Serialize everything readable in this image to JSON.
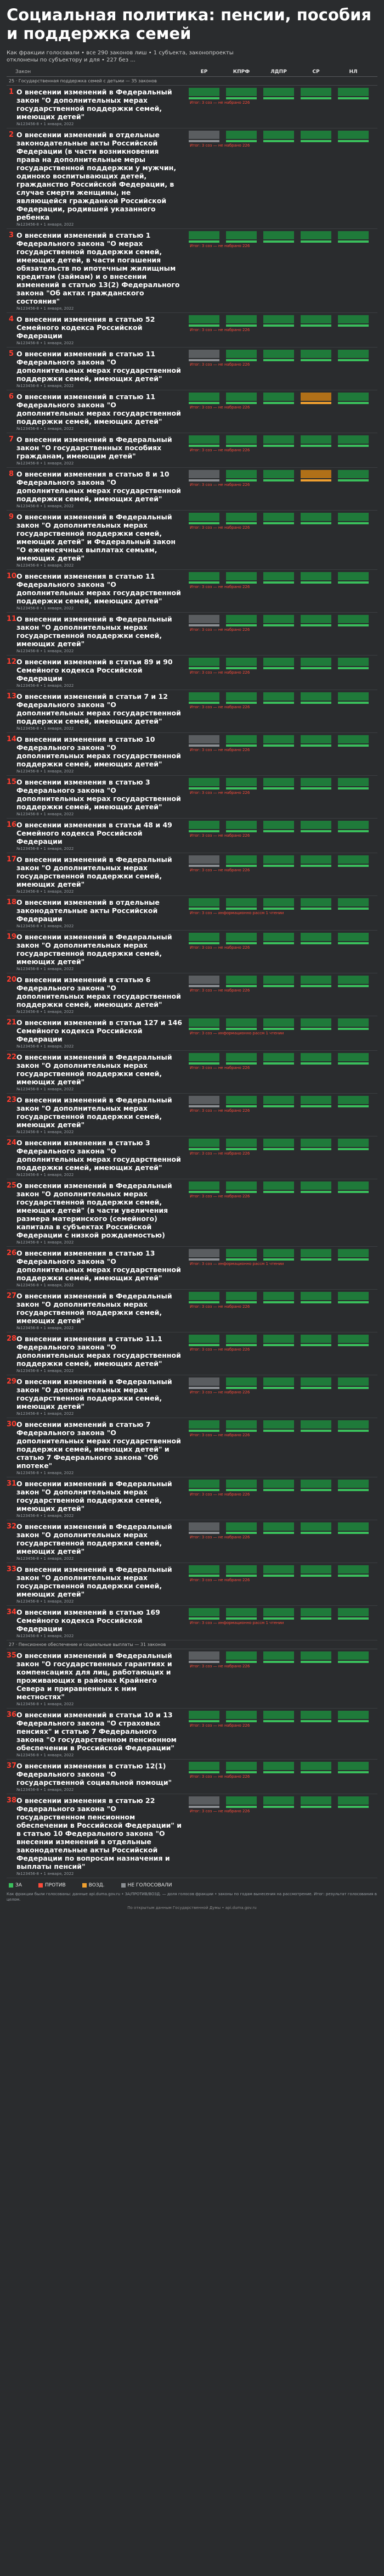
{
  "title": "Социальная политика: пенсии, пособия и поддержка семей",
  "subtitle": "Как фракции голосовали • все 290 законов лиш • 1 субъекта, законопроекты отклонены по субъектору и для • 227 без ...",
  "header": {
    "law_col": "Закон",
    "parties": [
      "ЕР",
      "КПРФ",
      "ЛДПР",
      "СР",
      "НЛ"
    ]
  },
  "section1": "25 · Государственная поддержка семей с детьми — 35 законов",
  "section2": "27 · Пенсионное обеспечение и социальные выплаты — 31 законов",
  "rows": [
    {
      "n": "1",
      "t": "О внесении изменений в Федеральный закон \"О дополнительных мерах государственной поддержки семей, имеющих детей\"",
      "m": "№123456-8 • 1 января, 2022",
      "res": "Итог: 3 соз — не набрано 226"
    },
    {
      "n": "2",
      "t": "О внесении изменений в отдельные законодательные акты Российской Федерации (в части возникновения права на дополнительные меры государственной поддержки у мужчин, одиноко воспитывающих детей, гражданство Российской Федерации, в случае смерти женщины, не являющейся гражданкой Российской Федерации, родившей указанного ребенка",
      "m": "№123456-8 • 1 января, 2022",
      "res": "Итог: 3 соз — не набрано 226"
    },
    {
      "n": "3",
      "t": "О внесении изменений в статью 1 Федерального закона \"О мерах государственной поддержки семей, имеющих детей, в части погашения обязательств по ипотечным жилищным кредитам (займам) и о внесении изменений в статью 13(2) Федерального закона \"Об актах гражданского состояния\"",
      "m": "№123456-8 • 1 января, 2022",
      "res": "Итог: 3 соз — не набрано 226"
    },
    {
      "n": "4",
      "t": "О внесении изменения в статью 52 Семейного кодекса Российской Федерации",
      "m": "№123456-8 • 1 января, 2022",
      "res": "Итог: 3 соз — не набрано 226"
    },
    {
      "n": "5",
      "t": "О внесении изменений в статью 11 Федерального закона \"О дополнительных мерах государственной поддержки семей, имеющих детей\"",
      "m": "№123456-8 • 1 января, 2022",
      "res": "Итог: 3 соз — не набрано 226"
    },
    {
      "n": "6",
      "t": "О внесении изменений в статью 11 Федерального закона \"О дополнительных мерах государственной поддержки семей, имеющих детей\"",
      "m": "№123456-8 • 1 января, 2022",
      "res": "Итог: 3 соз — не набрано 226"
    },
    {
      "n": "7",
      "t": "О внесении изменений в Федеральный закон \"О государственных пособиях гражданам, имеющим детей\"",
      "m": "№123456-8 • 1 января, 2022",
      "res": "Итог: 3 соз — не набрано 226"
    },
    {
      "n": "8",
      "t": "О внесении изменения в статью 8 и 10 Федерального закона \"О дополнительных мерах государственной поддержки семей, имеющих детей\"",
      "m": "№123456-8 • 1 января, 2022",
      "res": "Итог: 3 соз — не набрано 226"
    },
    {
      "n": "9",
      "t": "О внесении изменений в Федеральный закон \"О дополнительных мерах государственной поддержки семей, имеющих детей\" и Федеральный закон \"О ежемесячных выплатах семьям, имеющих детей\"",
      "m": "№123456-8 • 1 января, 2022",
      "res": "Итог: 3 соз — не набрано 226"
    },
    {
      "n": "10",
      "t": "О внесении изменения в статью 11 Федерального закона \"О дополнительных мерах государственной поддержки семей, имеющих детей\"",
      "m": "№123456-8 • 1 января, 2022",
      "res": "Итог: 3 соз — не набрано 226"
    },
    {
      "n": "11",
      "t": "О внесении изменений в Федеральный закон \"О дополнительных мерах государственной поддержки семей, имеющих детей\"",
      "m": "№123456-8 • 1 января, 2022",
      "res": "Итог: 3 соз — не набрано 226"
    },
    {
      "n": "12",
      "t": "О внесении изменений в статьи 89 и 90 Семейного кодекса Российской Федерации",
      "m": "№123456-8 • 1 января, 2022",
      "res": "Итог: 3 соз — не набрано 226"
    },
    {
      "n": "13",
      "t": "О внесении изменений в статьи 7 и 12 Федерального закона \"О дополнительных мерах государственной поддержки семей, имеющих детей\"",
      "m": "№123456-8 • 1 января, 2022",
      "res": "Итог: 3 соз — не набрано 226"
    },
    {
      "n": "14",
      "t": "О внесении изменения в статью 10 Федерального закона \"О дополнительных мерах государственной поддержки семей, имеющих детей\"",
      "m": "№123456-8 • 1 января, 2022",
      "res": "Итог: 3 соз — не набрано 226"
    },
    {
      "n": "15",
      "t": "О внесении изменения в статью 3 Федерального закона \"О дополнительных мерах государственной поддержки семей, имеющих детей\"",
      "m": "№123456-8 • 1 января, 2022",
      "res": "Итог: 3 соз — не набрано 226"
    },
    {
      "n": "16",
      "t": "О внесении изменения в статьи 48 и 49 Семейного кодекса Российской Федерации",
      "m": "№123456-8 • 1 января, 2022",
      "res": "Итог: 3 соз — не набрано 226"
    },
    {
      "n": "17",
      "t": "О внесении изменений в Федеральный закон \"О дополнительных мерах государственной поддержки семей, имеющих детей\"",
      "m": "№123456-8 • 1 января, 2022",
      "res": "Итог: 3 соз — не набрано 226"
    },
    {
      "n": "18",
      "t": "О внесении изменений в отдельные законодательные акты Российской Федерации",
      "m": "№123456-8 • 1 января, 2022",
      "res": "Итог: 3 соз — информационно рассм 1 чтении"
    },
    {
      "n": "19",
      "t": "О внесении изменений в Федеральный закон \"О дополнительных мерах государственной поддержки семей, имеющих детей\"",
      "m": "№123456-8 • 1 января, 2022",
      "res": "Итог: 3 соз — не набрано 226"
    },
    {
      "n": "20",
      "t": "О внесении изменений в статью 6 Федерального закона \"О дополнительных мерах государственной поддержки семей, имеющих детей\"",
      "m": "№123456-8 • 1 января, 2022",
      "res": "Итог: 3 соз — не набрано 226"
    },
    {
      "n": "21",
      "t": "О внесении изменений в статьи 127 и 146 Семейного кодекса Российской Федерации",
      "m": "№123456-8 • 1 января, 2022",
      "res": "Итог: 3 соз — информационно рассм 1 чтении"
    },
    {
      "n": "22",
      "t": "О внесении изменений в Федеральный закон \"О дополнительных мерах государственной поддержки семей, имеющих детей\"",
      "m": "№123456-8 • 1 января, 2022",
      "res": "Итог: 3 соз — не набрано 226"
    },
    {
      "n": "23",
      "t": "О внесении изменений в Федеральный закон \"О дополнительных мерах государственной поддержки семей, имеющих детей\"",
      "m": "№123456-8 • 1 января, 2022",
      "res": "Итог: 3 соз — не набрано 226"
    },
    {
      "n": "24",
      "t": "О внесении изменения в статью 3 Федерального закона \"О дополнительных мерах государственной поддержки семей, имеющих детей\"",
      "m": "№123456-8 • 1 января, 2022",
      "res": "Итог: 3 соз — не набрано 226"
    },
    {
      "n": "25",
      "t": "О внесении изменений в Федеральный закон \"О дополнительных мерах государственной поддержки семей, имеющих детей\" (в части увеличения размера материнского (семейного) капитала в субъектах Российской Федерации с низкой рождаемостью)",
      "m": "№123456-8 • 1 января, 2022",
      "res": "Итог: 3 соз — не набрано 226"
    },
    {
      "n": "26",
      "t": "О внесении изменения в статью 13 Федерального закона \"О дополнительных мерах государственной поддержки семей, имеющих детей\"",
      "m": "№123456-8 • 1 января, 2022",
      "res": "Итог: 3 соз — информационно рассм 1 чтении"
    },
    {
      "n": "27",
      "t": "О внесении изменений в Федеральный закон \"О дополнительных мерах государственной поддержки семей, имеющих детей\"",
      "m": "№123456-8 • 1 января, 2022",
      "res": "Итог: 3 соз — не набрано 226"
    },
    {
      "n": "28",
      "t": "О внесении изменения в статью 11.1 Федерального закона \"О дополнительных мерах государственной поддержки семей, имеющих детей\"",
      "m": "№123456-8 • 1 января, 2022",
      "res": "Итог: 3 соз — не набрано 226"
    },
    {
      "n": "29",
      "t": "О внесении изменений в Федеральный закон \"О дополнительных мерах государственной поддержки семей, имеющих детей\"",
      "m": "№123456-8 • 1 января, 2022",
      "res": "Итог: 3 соз — не набрано 226"
    },
    {
      "n": "30",
      "t": "О внесении изменений в статью 7 Федерального закона \"О дополнительных мерах государственной поддержки семей, имеющих детей\" и статью 7 Федерального закона \"Об ипотеке\"",
      "m": "№123456-8 • 1 января, 2022",
      "res": "Итог: 3 соз — не набрано 226"
    },
    {
      "n": "31",
      "t": "О внесении изменений в Федеральный закон \"О дополнительных мерах государственной поддержки семей, имеющих детей\"",
      "m": "№123456-8 • 1 января, 2022",
      "res": "Итог: 3 соз — не набрано 226"
    },
    {
      "n": "32",
      "t": "О внесении изменений в Федеральный закон \"О дополнительных мерах государственной поддержки семей, имеющих детей\"",
      "m": "№123456-8 • 1 января, 2022",
      "res": "Итог: 3 соз — не набрано 226"
    },
    {
      "n": "33",
      "t": "О внесении изменений в Федеральный закон \"О дополнительных мерах государственной поддержки семей, имеющих детей\"",
      "m": "№123456-8 • 1 января, 2022",
      "res": "Итог: 3 соз — не набрано 226"
    },
    {
      "n": "34",
      "t": "О внесении изменений в статью 169 Семейного кодекса Российской Федерации",
      "m": "№123456-8 • 1 января, 2022",
      "res": "Итог: 3 соз — информационно рассм 1 чтении"
    },
    {
      "n": "35",
      "t": "О внесении изменений в Федеральный закон \"О государственных гарантиях и компенсациях для лиц, работающих и проживающих в районах Крайнего Севера и приравненных к ним местностях\"",
      "m": "№123456-8 • 1 января, 2022",
      "res": "Итог: 3 соз — не набрано 226"
    },
    {
      "n": "36",
      "t": "О внесении изменений в статьи 10 и 13 Федерального закона \"О страховых пенсиях\" и статью 7 Федерального закона \"О государственном пенсионном обеспечении в Российской Федерации\"",
      "m": "№123456-8 • 1 января, 2022",
      "res": "Итог: 3 соз — не набрано 226"
    },
    {
      "n": "37",
      "t": "О внесении изменения в статью 12(1) Федерального закона \"О государственной социальной помощи\"",
      "m": "№123456-8 • 1 января, 2022",
      "res": "Итог: 3 соз — не набрано 226"
    },
    {
      "n": "38",
      "t": "О внесении изменения в статью 22 Федерального закона \"О государственном пенсионном обеспечении в Российской Федерации\" и в статью 10 Федерального закона \"О внесении изменений в отдельные законодательные акты Российской Федерации по вопросам назначения и выплаты пенсий\"",
      "m": "№123456-8 • 1 января, 2022",
      "res": "Итог: 3 соз — не набрано 226"
    }
  ],
  "legend": [
    "ЗА",
    "ПРОТИВ",
    "ВОЗД.",
    "НЕ ГОЛОСОВАЛИ"
  ],
  "colors": {
    "za": "#3ac05c",
    "protiv": "#ff4b3a",
    "vozd": "#f0a030",
    "ne": "#8b8f93"
  },
  "notes": "Как фракции были голосованы: данные api.duma.gov.ru • ЗА/ПРОТИВ/ВОЗД. — доля голосов фракции • законы по годам вынесения на рассмотрение. Итог: результат голосования в целом.",
  "credit": "По открытым данным Государственной Думы • api.duma.gov.ru"
}
